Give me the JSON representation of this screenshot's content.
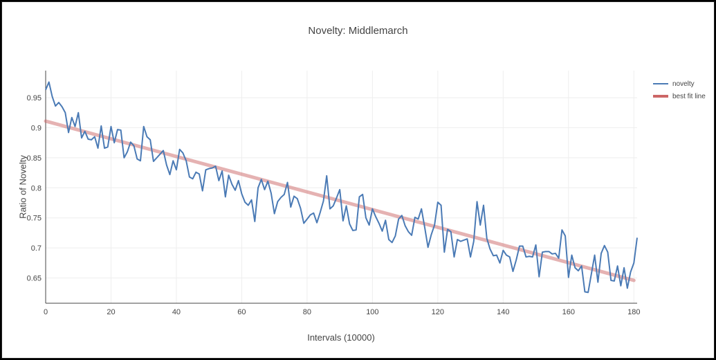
{
  "chart_data": {
    "type": "line",
    "title": "Novelty: Middlemarch",
    "xlabel": "Intervals (10000)",
    "ylabel": "Ratio of Novelty",
    "xlim": [
      0,
      181
    ],
    "ylim": [
      0.608,
      0.995
    ],
    "x_ticks": [
      0,
      20,
      40,
      60,
      80,
      100,
      120,
      140,
      160,
      180
    ],
    "y_ticks": [
      0.65,
      0.7,
      0.75,
      0.8,
      0.85,
      0.9,
      0.95
    ],
    "grid": true,
    "legend_position": "top-right",
    "series": [
      {
        "name": "novelty",
        "color": "#4a7ab5",
        "x_start": 0,
        "x_step": 1,
        "values": [
          0.963,
          0.976,
          0.952,
          0.936,
          0.942,
          0.935,
          0.925,
          0.892,
          0.917,
          0.902,
          0.925,
          0.883,
          0.894,
          0.881,
          0.88,
          0.885,
          0.866,
          0.903,
          0.866,
          0.868,
          0.902,
          0.875,
          0.897,
          0.896,
          0.85,
          0.86,
          0.876,
          0.87,
          0.848,
          0.845,
          0.902,
          0.885,
          0.88,
          0.844,
          0.85,
          0.856,
          0.862,
          0.838,
          0.822,
          0.845,
          0.83,
          0.864,
          0.858,
          0.845,
          0.818,
          0.815,
          0.826,
          0.823,
          0.795,
          0.83,
          0.832,
          0.833,
          0.836,
          0.812,
          0.828,
          0.785,
          0.821,
          0.806,
          0.796,
          0.812,
          0.79,
          0.776,
          0.771,
          0.78,
          0.744,
          0.8,
          0.814,
          0.797,
          0.811,
          0.791,
          0.757,
          0.777,
          0.784,
          0.789,
          0.809,
          0.768,
          0.786,
          0.782,
          0.766,
          0.741,
          0.748,
          0.755,
          0.758,
          0.742,
          0.759,
          0.778,
          0.82,
          0.765,
          0.77,
          0.783,
          0.797,
          0.745,
          0.77,
          0.74,
          0.729,
          0.73,
          0.785,
          0.789,
          0.75,
          0.738,
          0.765,
          0.752,
          0.741,
          0.728,
          0.746,
          0.714,
          0.709,
          0.72,
          0.748,
          0.754,
          0.737,
          0.727,
          0.721,
          0.751,
          0.748,
          0.765,
          0.734,
          0.701,
          0.722,
          0.738,
          0.776,
          0.771,
          0.693,
          0.731,
          0.727,
          0.685,
          0.714,
          0.711,
          0.713,
          0.715,
          0.685,
          0.711,
          0.777,
          0.738,
          0.771,
          0.716,
          0.698,
          0.687,
          0.688,
          0.675,
          0.696,
          0.688,
          0.685,
          0.661,
          0.68,
          0.703,
          0.703,
          0.685,
          0.686,
          0.685,
          0.705,
          0.652,
          0.693,
          0.694,
          0.694,
          0.69,
          0.691,
          0.683,
          0.73,
          0.72,
          0.651,
          0.688,
          0.667,
          0.662,
          0.67,
          0.627,
          0.626,
          0.657,
          0.688,
          0.643,
          0.691,
          0.704,
          0.693,
          0.646,
          0.645,
          0.67,
          0.637,
          0.667,
          0.633,
          0.66,
          0.675,
          0.717
        ]
      },
      {
        "name": "best fit line",
        "color": "#cc6666",
        "x": [
          0,
          180
        ],
        "y": [
          0.911,
          0.646
        ]
      }
    ]
  }
}
